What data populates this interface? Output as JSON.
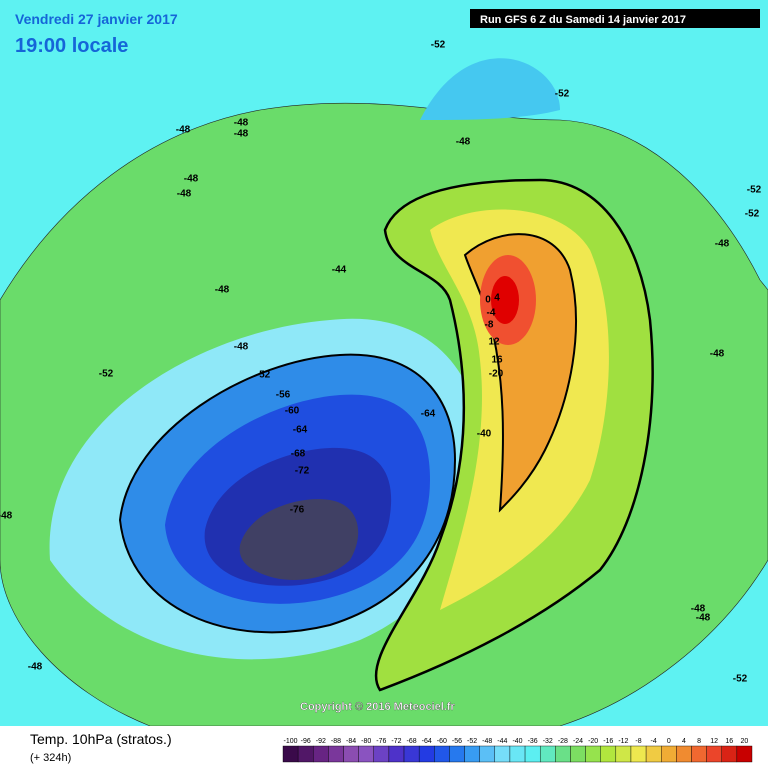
{
  "header": {
    "date": "Vendredi 27 janvier 2017",
    "time": "19:00 locale",
    "run": "Run GFS 6 Z du Samedi 14 janvier 2017"
  },
  "copyright": "Copyright © 2016 Meteociel.fr",
  "footer": {
    "title": "Temp. 10hPa (stratos.)",
    "lead": "(+ 324h)"
  },
  "colorbar": {
    "labels": [
      "-100",
      "-96",
      "-92",
      "-88",
      "-84",
      "-80",
      "-76",
      "-72",
      "-68",
      "-64",
      "-60",
      "-56",
      "-52",
      "-48",
      "-44",
      "-40",
      "-36",
      "-32",
      "-28",
      "-24",
      "-20",
      "-16",
      "-12",
      "-8",
      "-4",
      "0",
      "4",
      "8",
      "12",
      "16",
      "20"
    ]
  },
  "contours": [
    "-52",
    "-52",
    "-48",
    "-48",
    "-48",
    "-48",
    "-48",
    "-48",
    "-52",
    "-52",
    "-48",
    "-44",
    "-48",
    "-48",
    "-48",
    "-52",
    "-52",
    "-56",
    "-60",
    "-64",
    "-64",
    "-68",
    "-72",
    "-76",
    "-48",
    "-48",
    "-48",
    "-48",
    "-52",
    "0",
    "4",
    "-4",
    "-8",
    "12",
    "16",
    "-20",
    "-40"
  ]
}
